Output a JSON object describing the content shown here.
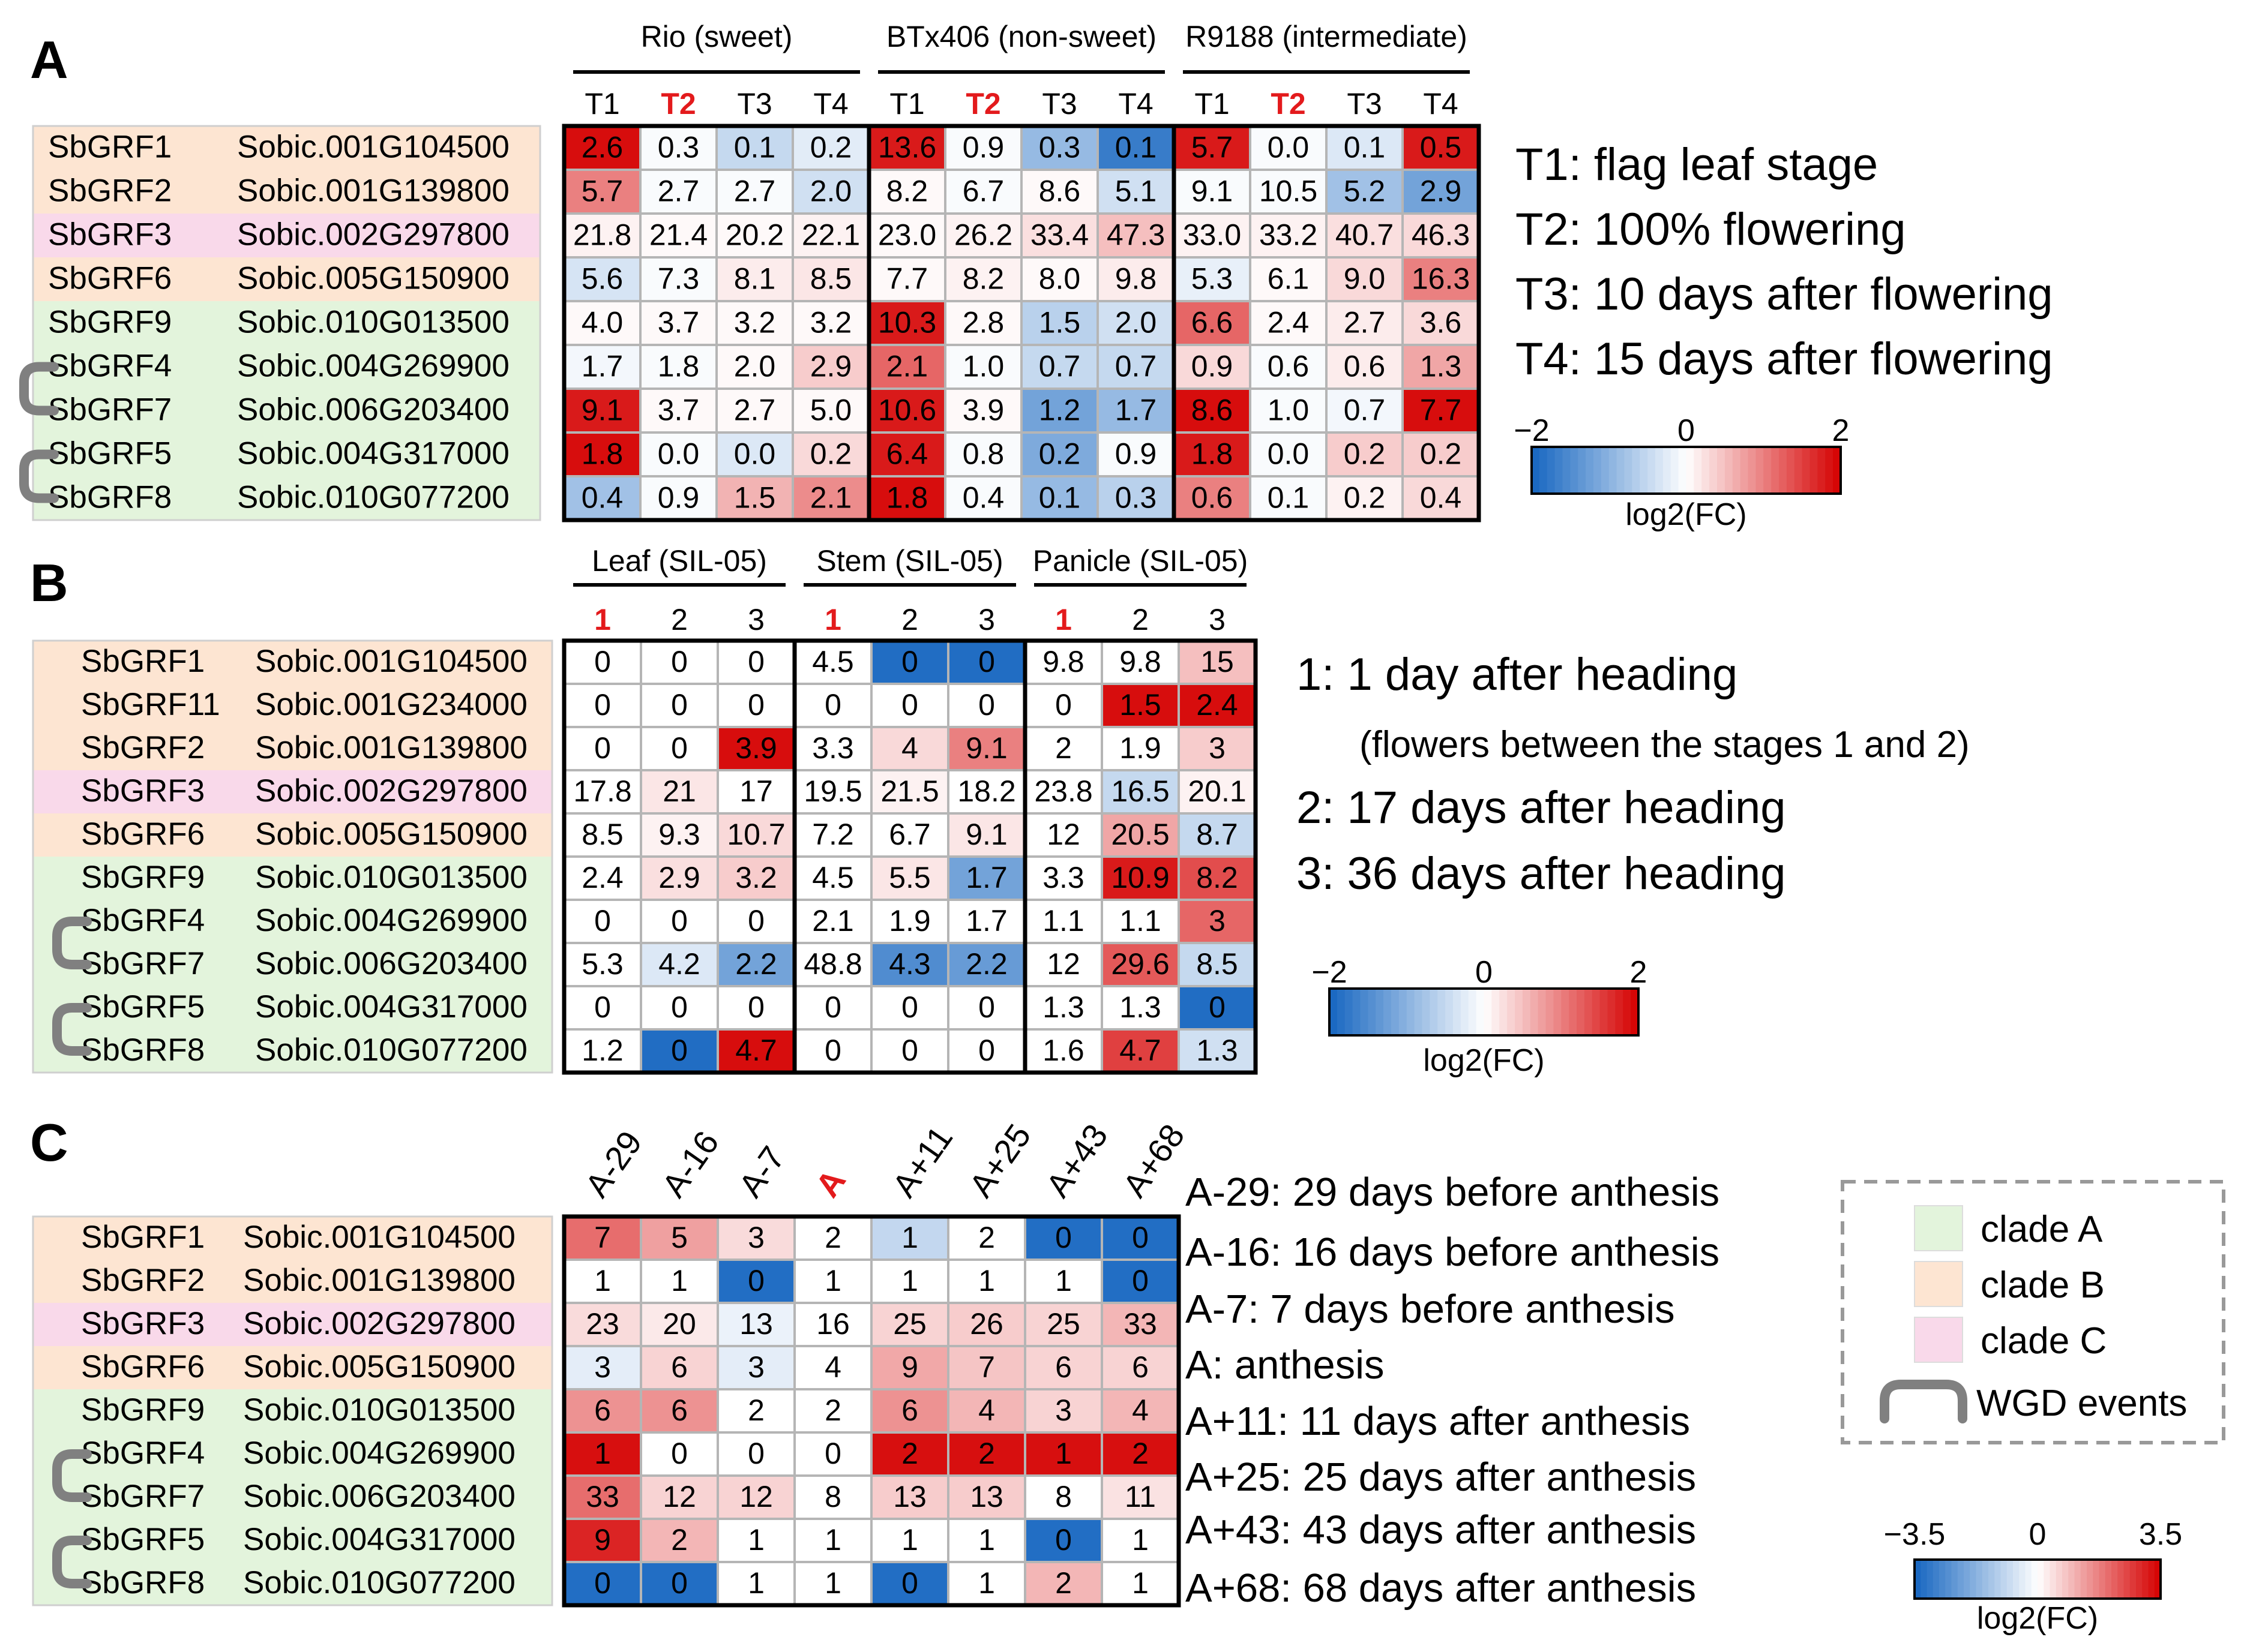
{
  "colors": {
    "clade_a": "#e3f4dc",
    "clade_b": "#fde5d2",
    "clade_c": "#f9d9ea",
    "wgd": "#808080",
    "neg": "#1565c0",
    "mid": "#ffffff",
    "pos": "#d50000",
    "highlight": "#e31a1c"
  },
  "legend": {
    "items": [
      {
        "label": "clade A",
        "color": "#e3f4dc"
      },
      {
        "label": "clade B",
        "color": "#fde5d2"
      },
      {
        "label": "clade C",
        "color": "#f9d9ea"
      },
      {
        "label": "WGD events",
        "color": "#808080"
      }
    ]
  },
  "chart_data": [
    {
      "type": "heatmap",
      "panel": "A",
      "groups": [
        "Rio (sweet)",
        "BTx406 (non-sweet)",
        "R9188 (intermediate)"
      ],
      "columns": [
        "T1",
        "T2",
        "T3",
        "T4",
        "T1",
        "T2",
        "T3",
        "T4",
        "T1",
        "T2",
        "T3",
        "T4"
      ],
      "highlight_columns": [
        1,
        5,
        9
      ],
      "genes": [
        "SbGRF1",
        "SbGRF2",
        "SbGRF3",
        "SbGRF6",
        "SbGRF9",
        "SbGRF4",
        "SbGRF7",
        "SbGRF5",
        "SbGRF8"
      ],
      "ids": [
        "Sobic.001G104500",
        "Sobic.001G139800",
        "Sobic.002G297800",
        "Sobic.005G150900",
        "Sobic.010G013500",
        "Sobic.004G269900",
        "Sobic.006G203400",
        "Sobic.004G317000",
        "Sobic.010G077200"
      ],
      "clades": [
        "B",
        "B",
        "C",
        "B",
        "A",
        "A",
        "A",
        "A",
        "A"
      ],
      "wgd_pairs": [
        [
          5,
          6
        ],
        [
          7,
          8
        ]
      ],
      "values": [
        [
          "2.6",
          "0.3",
          "0.1",
          "0.2",
          "13.6",
          "0.9",
          "0.3",
          "0.1",
          "5.7",
          "0.0",
          "0.1",
          "0.5"
        ],
        [
          "5.7",
          "2.7",
          "2.7",
          "2.0",
          "8.2",
          "6.7",
          "8.6",
          "5.1",
          "9.1",
          "10.5",
          "5.2",
          "2.9"
        ],
        [
          "21.8",
          "21.4",
          "20.2",
          "22.1",
          "23.0",
          "26.2",
          "33.4",
          "47.3",
          "33.0",
          "33.2",
          "40.7",
          "46.3"
        ],
        [
          "5.6",
          "7.3",
          "8.1",
          "8.5",
          "7.7",
          "8.2",
          "8.0",
          "9.8",
          "5.3",
          "6.1",
          "9.0",
          "16.3"
        ],
        [
          "4.0",
          "3.7",
          "3.2",
          "3.2",
          "10.3",
          "2.8",
          "1.5",
          "2.0",
          "6.6",
          "2.4",
          "2.7",
          "3.6"
        ],
        [
          "1.7",
          "1.8",
          "2.0",
          "2.9",
          "2.1",
          "1.0",
          "0.7",
          "0.7",
          "0.9",
          "0.6",
          "0.6",
          "1.3"
        ],
        [
          "9.1",
          "3.7",
          "2.7",
          "5.0",
          "10.6",
          "3.9",
          "1.2",
          "1.7",
          "8.6",
          "1.0",
          "0.7",
          "7.7"
        ],
        [
          "1.8",
          "0.0",
          "0.0",
          "0.2",
          "6.4",
          "0.8",
          "0.2",
          "0.9",
          "1.8",
          "0.0",
          "0.2",
          "0.2"
        ],
        [
          "0.4",
          "0.9",
          "1.5",
          "2.1",
          "1.8",
          "0.4",
          "0.1",
          "0.3",
          "0.6",
          "0.1",
          "0.2",
          "0.4"
        ]
      ],
      "colors_log2fc": [
        [
          1.9,
          -0.05,
          -0.5,
          -0.25,
          1.8,
          -0.05,
          -0.9,
          -1.7,
          1.8,
          -0.05,
          -0.3,
          1.8
        ],
        [
          1.0,
          -0.05,
          -0.05,
          -0.4,
          0.05,
          -0.05,
          0.05,
          -0.4,
          -0.05,
          -0.05,
          -0.8,
          -1.2
        ],
        [
          0.1,
          0.05,
          0.05,
          0.1,
          0.05,
          0.1,
          0.25,
          0.5,
          0.1,
          0.1,
          0.25,
          0.3
        ],
        [
          -0.35,
          -0.05,
          0.15,
          0.2,
          0.05,
          0.1,
          0.05,
          0.15,
          -0.2,
          0.05,
          0.3,
          1.0
        ],
        [
          0.05,
          0.05,
          0.05,
          0.05,
          1.8,
          0.05,
          -0.6,
          -0.4,
          1.2,
          0.05,
          0.15,
          0.3
        ],
        [
          -0.1,
          -0.05,
          0.05,
          0.4,
          1.2,
          -0.05,
          -0.5,
          -0.5,
          0.3,
          -0.05,
          0.15,
          0.7
        ],
        [
          1.8,
          0.05,
          0.05,
          0.05,
          1.8,
          0.05,
          -1.2,
          -0.9,
          1.9,
          -0.05,
          -0.1,
          1.9
        ],
        [
          1.9,
          -0.05,
          -0.3,
          0.3,
          1.8,
          -0.05,
          -1.1,
          -0.05,
          1.8,
          -0.05,
          0.4,
          0.4
        ],
        [
          -0.8,
          -0.05,
          0.6,
          0.9,
          1.9,
          -0.05,
          -0.9,
          -0.6,
          1.0,
          -0.05,
          0.1,
          0.3
        ]
      ],
      "legend_notes": [
        "T1: flag leaf stage",
        "T2: 100% flowering",
        "T3: 10 days after flowering",
        "T4: 15 days after flowering"
      ],
      "scale": {
        "min": -2,
        "max": 2,
        "ticks": [
          "−2",
          "0",
          "2"
        ],
        "label": "log2(FC)"
      }
    },
    {
      "type": "heatmap",
      "panel": "B",
      "groups": [
        "Leaf (SIL-05)",
        "Stem (SIL-05)",
        "Panicle (SIL-05)"
      ],
      "columns": [
        "1",
        "2",
        "3",
        "1",
        "2",
        "3",
        "1",
        "2",
        "3"
      ],
      "highlight_columns": [
        0,
        3,
        6
      ],
      "genes": [
        "SbGRF1",
        "SbGRF11",
        "SbGRF2",
        "SbGRF3",
        "SbGRF6",
        "SbGRF9",
        "SbGRF4",
        "SbGRF7",
        "SbGRF5",
        "SbGRF8"
      ],
      "ids": [
        "Sobic.001G104500",
        "Sobic.001G234000",
        "Sobic.001G139800",
        "Sobic.002G297800",
        "Sobic.005G150900",
        "Sobic.010G013500",
        "Sobic.004G269900",
        "Sobic.006G203400",
        "Sobic.004G317000",
        "Sobic.010G077200"
      ],
      "clades": [
        "B",
        "B",
        "B",
        "C",
        "B",
        "A",
        "A",
        "A",
        "A",
        "A"
      ],
      "wgd_pairs": [
        [
          6,
          7
        ],
        [
          8,
          9
        ]
      ],
      "values": [
        [
          "0",
          "0",
          "0",
          "4.5",
          "0",
          "0",
          "9.8",
          "9.8",
          "15"
        ],
        [
          "0",
          "0",
          "0",
          "0",
          "0",
          "0",
          "0",
          "1.5",
          "2.4"
        ],
        [
          "0",
          "0",
          "3.9",
          "3.3",
          "4",
          "9.1",
          "2",
          "1.9",
          "3"
        ],
        [
          "17.8",
          "21",
          "17",
          "19.5",
          "21.5",
          "18.2",
          "23.8",
          "16.5",
          "20.1"
        ],
        [
          "8.5",
          "9.3",
          "10.7",
          "7.2",
          "6.7",
          "9.1",
          "12",
          "20.5",
          "8.7"
        ],
        [
          "2.4",
          "2.9",
          "3.2",
          "4.5",
          "5.5",
          "1.7",
          "3.3",
          "10.9",
          "8.2"
        ],
        [
          "0",
          "0",
          "0",
          "2.1",
          "1.9",
          "1.7",
          "1.1",
          "1.1",
          "3"
        ],
        [
          "5.3",
          "4.2",
          "2.2",
          "48.8",
          "4.3",
          "2.2",
          "12",
          "29.6",
          "8.5"
        ],
        [
          "0",
          "0",
          "0",
          "0",
          "0",
          "0",
          "1.3",
          "1.3",
          "0"
        ],
        [
          "1.2",
          "0",
          "4.7",
          "0",
          "0",
          "0",
          "1.6",
          "4.7",
          "1.3"
        ]
      ],
      "colors_log2fc": [
        [
          0,
          0,
          0,
          0,
          -1.9,
          -1.9,
          0,
          0,
          0.5
        ],
        [
          0,
          0,
          0,
          0,
          0,
          0,
          0,
          1.9,
          1.9
        ],
        [
          0,
          0,
          1.9,
          0,
          0.3,
          1.0,
          0,
          0,
          0.4
        ],
        [
          0,
          0.2,
          0,
          0,
          0.1,
          0,
          0,
          -0.5,
          0.1
        ],
        [
          0,
          0.1,
          0.3,
          0,
          0,
          0.2,
          0,
          0.7,
          -0.5
        ],
        [
          0,
          0.25,
          0.4,
          0,
          0.2,
          -1.2,
          0,
          1.8,
          1.4
        ],
        [
          0,
          0,
          0,
          0,
          0,
          0,
          0,
          0,
          1.2
        ],
        [
          0,
          -0.3,
          -1.2,
          0,
          -1.5,
          -1.3,
          0,
          1.3,
          -0.5
        ],
        [
          0,
          0,
          0,
          0,
          0,
          0,
          0,
          0,
          -1.9
        ],
        [
          0,
          -1.9,
          1.9,
          0,
          0,
          0,
          0,
          1.5,
          -0.4
        ]
      ],
      "legend_notes": [
        "1: 1 day after heading",
        "(flowers between the stages 1 and 2)",
        "2: 17 days after heading",
        "3: 36 days after heading"
      ],
      "scale": {
        "min": -2,
        "max": 2,
        "ticks": [
          "−2",
          "0",
          "2"
        ],
        "label": "log2(FC)"
      }
    },
    {
      "type": "heatmap",
      "panel": "C",
      "groups": [],
      "columns": [
        "A-29",
        "A-16",
        "A-7",
        "A",
        "A+11",
        "A+25",
        "A+43",
        "A+68"
      ],
      "highlight_columns": [
        3
      ],
      "genes": [
        "SbGRF1",
        "SbGRF2",
        "SbGRF3",
        "SbGRF6",
        "SbGRF9",
        "SbGRF4",
        "SbGRF7",
        "SbGRF5",
        "SbGRF8"
      ],
      "ids": [
        "Sobic.001G104500",
        "Sobic.001G139800",
        "Sobic.002G297800",
        "Sobic.005G150900",
        "Sobic.010G013500",
        "Sobic.004G269900",
        "Sobic.006G203400",
        "Sobic.004G317000",
        "Sobic.010G077200"
      ],
      "clades": [
        "B",
        "B",
        "C",
        "B",
        "A",
        "A",
        "A",
        "A",
        "A"
      ],
      "wgd_pairs": [
        [
          5,
          6
        ],
        [
          7,
          8
        ]
      ],
      "values": [
        [
          "7",
          "5",
          "3",
          "2",
          "1",
          "2",
          "0",
          "0"
        ],
        [
          "1",
          "1",
          "0",
          "1",
          "1",
          "1",
          "1",
          "0"
        ],
        [
          "23",
          "20",
          "13",
          "16",
          "25",
          "26",
          "25",
          "33"
        ],
        [
          "3",
          "6",
          "3",
          "4",
          "9",
          "7",
          "6",
          "6"
        ],
        [
          "6",
          "6",
          "2",
          "2",
          "6",
          "4",
          "3",
          "4"
        ],
        [
          "1",
          "0",
          "0",
          "0",
          "2",
          "2",
          "1",
          "2"
        ],
        [
          "33",
          "12",
          "12",
          "8",
          "13",
          "13",
          "8",
          "11"
        ],
        [
          "9",
          "2",
          "1",
          "1",
          "1",
          "1",
          "0",
          "1"
        ],
        [
          "0",
          "0",
          "1",
          "1",
          "0",
          "1",
          "2",
          "1"
        ]
      ],
      "colors_log2fc": [
        [
          2.0,
          1.3,
          0.5,
          0,
          -0.9,
          0,
          -3.3,
          -3.3
        ],
        [
          0,
          0,
          -3.3,
          0,
          0,
          0,
          0,
          -3.3
        ],
        [
          0.5,
          0.3,
          -0.3,
          0,
          0.6,
          0.7,
          0.6,
          1.0
        ],
        [
          -0.4,
          0.6,
          -0.4,
          0,
          1.2,
          0.8,
          0.6,
          0.6
        ],
        [
          1.5,
          1.5,
          0,
          0,
          1.5,
          1.0,
          0.6,
          1.0
        ],
        [
          3.3,
          0,
          0,
          0,
          3.3,
          3.3,
          3.3,
          3.3
        ],
        [
          2.0,
          0.6,
          0.6,
          0,
          0.7,
          0.7,
          0,
          0.4
        ],
        [
          3.0,
          1.0,
          0,
          0,
          0,
          0,
          -3.3,
          0
        ],
        [
          -3.3,
          -3.3,
          0,
          0,
          -3.3,
          0,
          1.0,
          0
        ]
      ],
      "legend_notes": [
        "A-29: 29 days before anthesis",
        "A-16: 16 days before anthesis",
        "A-7: 7 days before anthesis",
        "A: anthesis",
        "A+11: 11 days after anthesis",
        "A+25: 25 days after anthesis",
        "A+43: 43 days after anthesis",
        "A+68: 68 days after anthesis"
      ],
      "scale": {
        "min": -3.5,
        "max": 3.5,
        "ticks": [
          "−3.5",
          "0",
          "3.5"
        ],
        "label": "log2(FC)"
      }
    }
  ]
}
